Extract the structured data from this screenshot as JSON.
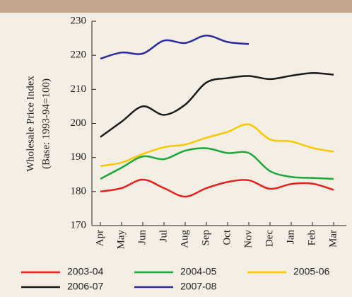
{
  "chart_data": {
    "type": "line",
    "ylabel": [
      "Wholesale Price Index",
      "(Base: 1993-94=100)"
    ],
    "categories": [
      "Apr",
      "May",
      "Jun",
      "Jul",
      "Aug",
      "Sep",
      "Oct",
      "Nov",
      "Dec",
      "Jan",
      "Feb",
      "Mar"
    ],
    "series": [
      {
        "name": "2003-04",
        "color": "#e8201c",
        "values": [
          180,
          181,
          183.5,
          181,
          178.5,
          181,
          182.8,
          183.3,
          180.8,
          182.2,
          182.3,
          180.5
        ]
      },
      {
        "name": "2004-05",
        "color": "#1aa838",
        "values": [
          183.7,
          187,
          190.3,
          189.5,
          192,
          192.7,
          191.3,
          191.3,
          186,
          184.3,
          184,
          183.7
        ]
      },
      {
        "name": "2005-06",
        "color": "#f7c800",
        "values": [
          187.5,
          188.5,
          191,
          193,
          193.8,
          195.8,
          197.5,
          199.7,
          195.3,
          194.7,
          192.8,
          191.7
        ]
      },
      {
        "name": "2006-07",
        "color": "#1a1a1a",
        "values": [
          196,
          200.5,
          205,
          202.5,
          205.5,
          212,
          213.3,
          213.9,
          213,
          214,
          214.8,
          214.3
        ]
      },
      {
        "name": "2007-08",
        "color": "#2a2aa0",
        "values": [
          219,
          220.8,
          220.5,
          224.3,
          223.6,
          225.8,
          223.9,
          223.3,
          null,
          null,
          null,
          null
        ]
      }
    ],
    "ylim": [
      170,
      230
    ],
    "yticks": [
      170,
      180,
      190,
      200,
      210,
      220,
      230
    ]
  }
}
